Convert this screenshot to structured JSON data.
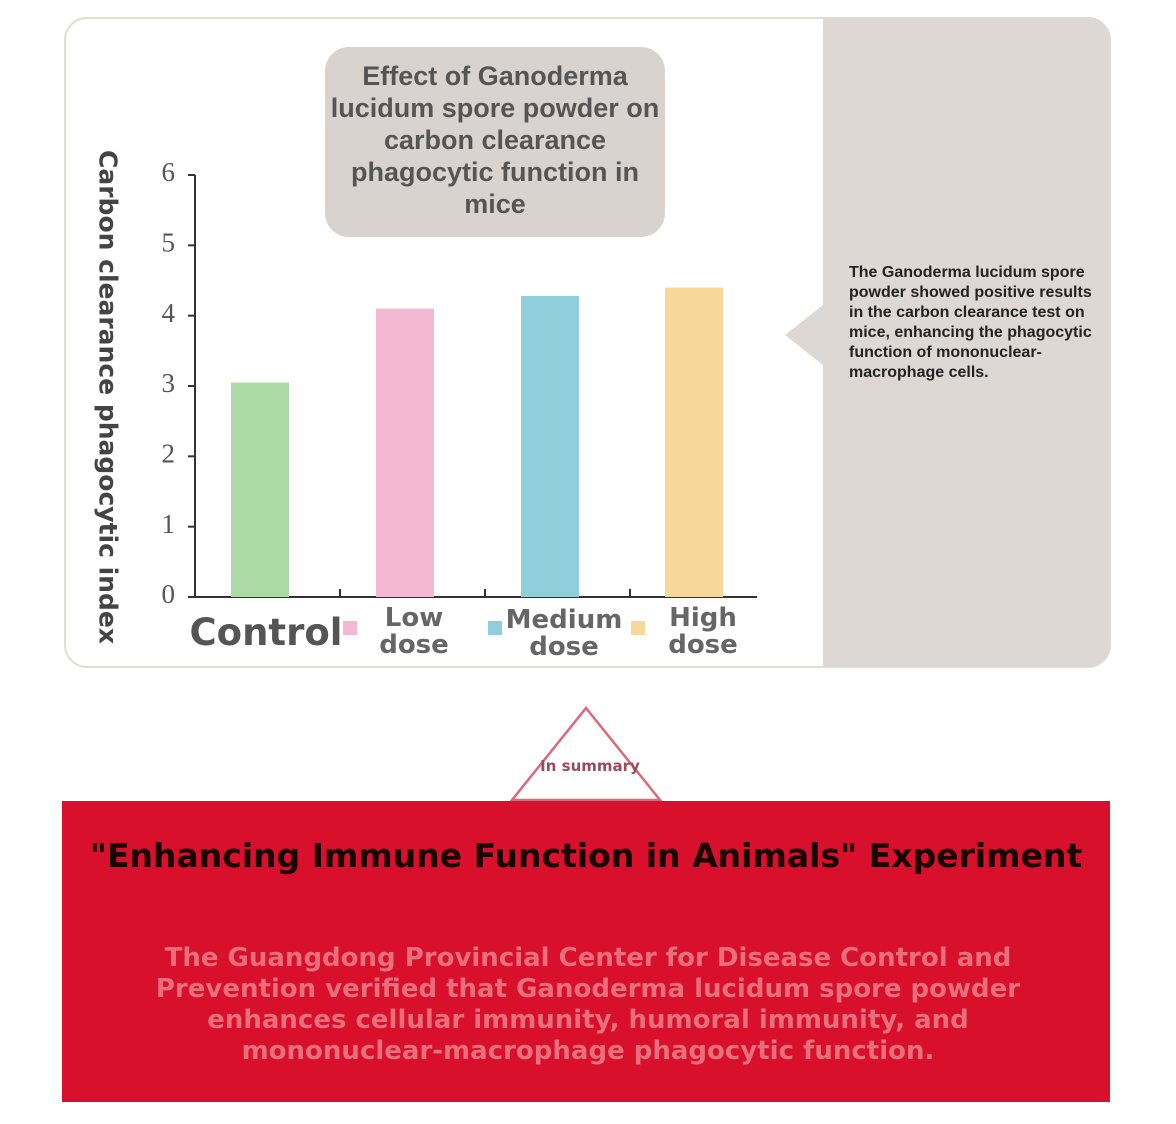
{
  "chart_data": {
    "type": "bar",
    "title": "Effect of Ganoderma lucidum spore powder on carbon clearance phagocytic function in mice",
    "y_label": "Carbon clearance phagocytic index",
    "categories": [
      "Control",
      "Low dose",
      "Medium dose",
      "High dose"
    ],
    "values": [
      3.05,
      4.1,
      4.28,
      4.4
    ],
    "colors": [
      "#addba5",
      "#f4b8d2",
      "#8fcfdc",
      "#f8d89a"
    ],
    "ylim": [
      0,
      6
    ],
    "yticks": [
      0,
      1,
      2,
      3,
      4,
      5,
      6
    ],
    "grid": false
  },
  "callout": "The Ganoderma lucidum spore powder showed positive results in the carbon clearance test on mice, enhancing the phagocytic function of mononuclear-macrophage cells.",
  "badge": "In summary",
  "summary": {
    "title": "\"Enhancing Immune Function in Animals\" Experiment",
    "body": "The Guangdong Provincial Center for Disease Control and Prevention verified that Ganoderma lucidum spore powder enhances cellular immunity, humoral immunity, and mononuclear-macrophage phagocytic function."
  }
}
